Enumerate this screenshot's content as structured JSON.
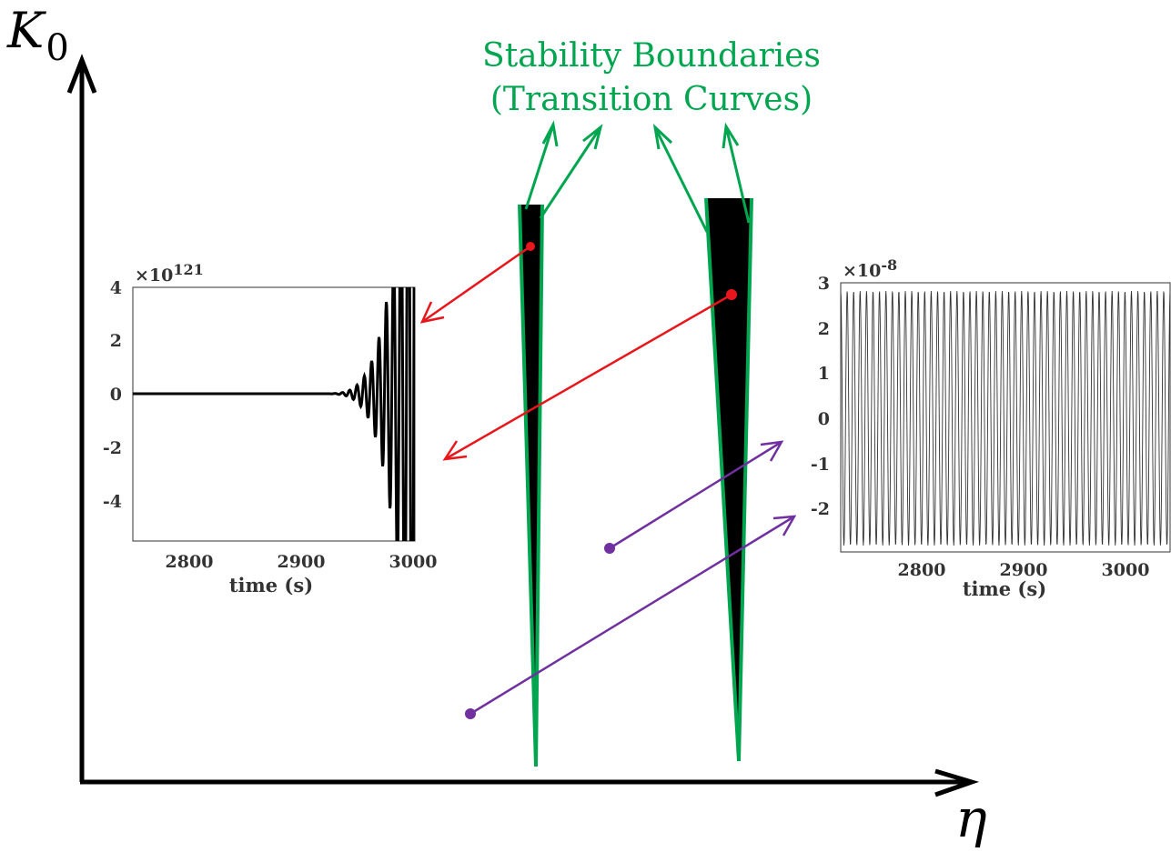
{
  "axes": {
    "y_letter": "K",
    "y_subscript": "0",
    "x_letter": "η"
  },
  "boundaries": {
    "title_line1": "Stability Boundaries",
    "title_line2": "(Transition Curves)"
  },
  "colors": {
    "boundary": "#00a550",
    "unstable_arrow": "#e8161b",
    "stable_arrow": "#7030a0",
    "region_fill": "#000000",
    "axis": "#000000"
  },
  "unstable_plot": {
    "multiplier_base": "×10",
    "multiplier_exp": "121",
    "y_ticks": [
      "4",
      "2",
      "0",
      "-2",
      "-4"
    ],
    "x_ticks": [
      "2800",
      "2900",
      "3000"
    ],
    "xlabel": "time (s)"
  },
  "stable_plot": {
    "multiplier_base": "×10",
    "multiplier_exp": "-8",
    "y_ticks": [
      "3",
      "2",
      "1",
      "0",
      "-1",
      "-2"
    ],
    "x_ticks": [
      "2800",
      "2900",
      "3000"
    ],
    "xlabel": "time (s)"
  }
}
